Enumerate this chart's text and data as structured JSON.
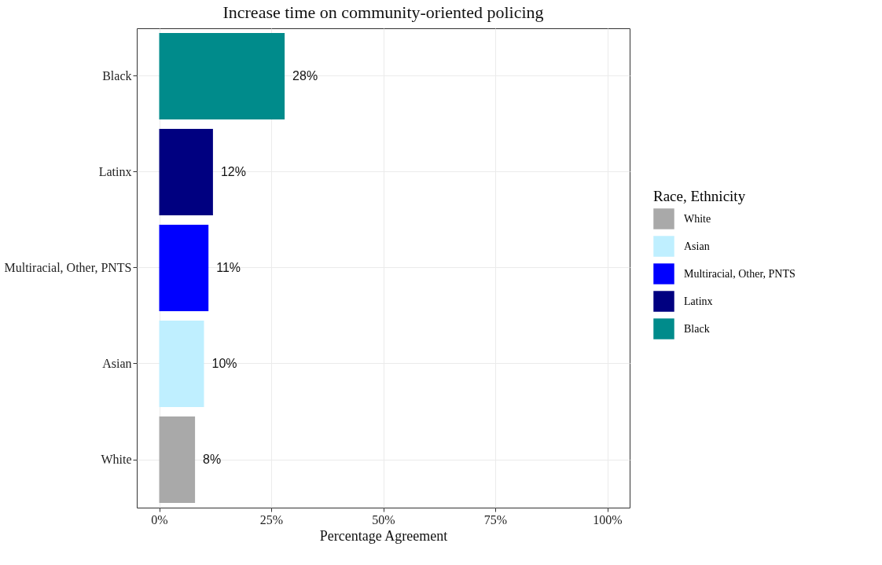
{
  "chart_data": {
    "type": "bar",
    "orientation": "horizontal",
    "title": "Increase time on community-oriented policing",
    "xlabel": "Percentage Agreement",
    "legend_title": "Race, Ethnicity",
    "categories": [
      "Black",
      "Latinx",
      "Multiracial, Other, PNTS",
      "Asian",
      "White"
    ],
    "series": [
      {
        "name": "White",
        "color": "#a9a9a9",
        "values": [
          null,
          null,
          null,
          null,
          8
        ],
        "value_labels": [
          null,
          null,
          null,
          null,
          "8%"
        ]
      },
      {
        "name": "Asian",
        "color": "#bfefff",
        "values": [
          null,
          null,
          null,
          10,
          null
        ],
        "value_labels": [
          null,
          null,
          null,
          "10%",
          null
        ]
      },
      {
        "name": "Multiracial, Other, PNTS",
        "color": "#0000ff",
        "values": [
          null,
          null,
          11,
          null,
          null
        ],
        "value_labels": [
          null,
          null,
          "11%",
          null,
          null
        ]
      },
      {
        "name": "Latinx",
        "color": "#000080",
        "values": [
          null,
          12,
          null,
          null,
          null
        ],
        "value_labels": [
          null,
          "12%",
          null,
          null,
          null
        ]
      },
      {
        "name": "Black",
        "color": "#008b8b",
        "values": [
          28,
          null,
          null,
          null,
          null
        ],
        "value_labels": [
          "28%",
          null,
          null,
          null,
          null
        ]
      }
    ],
    "xlim": [
      -5,
      105
    ],
    "xticks": [
      {
        "value": 0,
        "label": "0%"
      },
      {
        "value": 25,
        "label": "25%"
      },
      {
        "value": 50,
        "label": "50%"
      },
      {
        "value": 75,
        "label": "75%"
      },
      {
        "value": 100,
        "label": "100%"
      }
    ],
    "grid": true,
    "legend": "right"
  }
}
